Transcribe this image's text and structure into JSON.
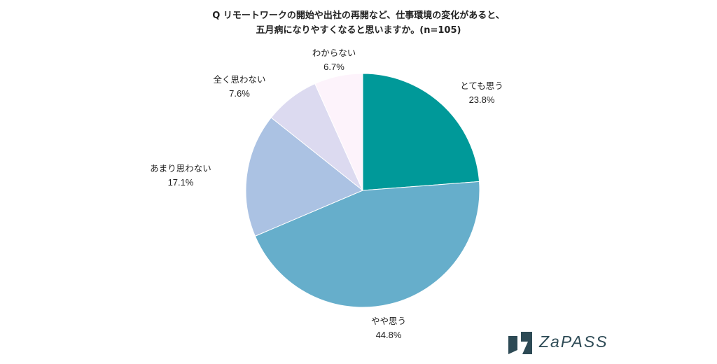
{
  "chart_data": {
    "type": "pie",
    "title_lines": [
      "Q リモートワークの開始や出社の再開など、仕事環境の変化があると、",
      "五月病になりやすくなると思いますか。(n=105)"
    ],
    "slices": [
      {
        "label": "とても思う",
        "value": 23.8,
        "display": "23.8%",
        "color": "#009999"
      },
      {
        "label": "やや思う",
        "value": 44.8,
        "display": "44.8%",
        "color": "#66aecb"
      },
      {
        "label": "あまり思わない",
        "value": 17.1,
        "display": "17.1%",
        "color": "#abc2e3"
      },
      {
        "label": "全く思わない",
        "value": 7.6,
        "display": "7.6%",
        "color": "#dcdaf0"
      },
      {
        "label": "わからない",
        "value": 6.7,
        "display": "6.7%",
        "color": "#fdf3fb"
      }
    ],
    "start": "12 o'clock",
    "direction": "clockwise"
  },
  "logo": {
    "text": "ZaPASS",
    "color": "#2d4a55"
  }
}
